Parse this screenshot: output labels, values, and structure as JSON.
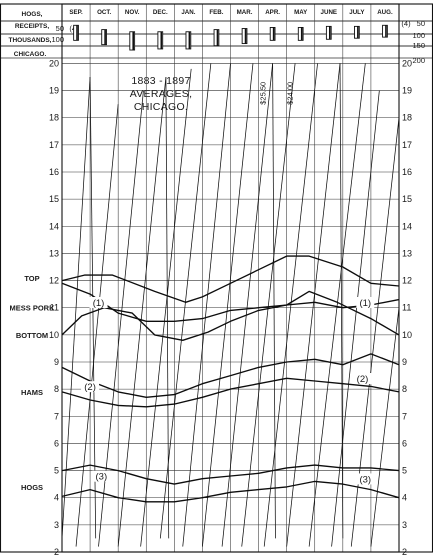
{
  "header": {
    "row_labels": [
      "HOGS,",
      "RECEIPTS,",
      "THOUSANDS,",
      "CHICAGO."
    ],
    "left_scale_top": [
      "50",
      "100"
    ],
    "right_scale_top": [
      "50",
      "100",
      "150",
      "200"
    ],
    "left_prefix": "(4)",
    "right_prefix": "(4)"
  },
  "chart_data": {
    "type": "line",
    "title": [
      "1883 - 1897",
      "AVERAGES,",
      "CHICAGO."
    ],
    "categories": [
      "SEP.",
      "OCT.",
      "NOV.",
      "DEC.",
      "JAN.",
      "FEB.",
      "MAR.",
      "APR.",
      "MAY",
      "JUNE",
      "JULY",
      "AUG."
    ],
    "y_left_ticks": [
      "2",
      "3",
      "4",
      "5",
      "6",
      "7",
      "8",
      "9",
      "10",
      "11",
      "12",
      "13",
      "14",
      "15",
      "16",
      "17",
      "18",
      "19",
      "20"
    ],
    "y_right_ticks": [
      "2",
      "3",
      "4",
      "5",
      "6",
      "7",
      "8",
      "9",
      "10",
      "11",
      "12",
      "13",
      "14",
      "15",
      "16",
      "17",
      "18",
      "19",
      "20"
    ],
    "ylim": [
      2,
      20.2
    ],
    "grid": true,
    "row_labels": [
      {
        "text": "TOP",
        "y": 12.1
      },
      {
        "text": "MESS PORK",
        "y": 11.0
      },
      {
        "text": "BOTTOM",
        "y": 10.0
      },
      {
        "text": "HAMS",
        "y": 7.9
      },
      {
        "text": "HOGS",
        "y": 4.4
      }
    ],
    "annotations": [
      {
        "text": "(1)",
        "x": 1.3,
        "y": 11.1
      },
      {
        "text": "(1)",
        "x": 10.8,
        "y": 11.1
      },
      {
        "text": "(2)",
        "x": 1.0,
        "y": 8.0
      },
      {
        "text": "(2)",
        "x": 10.7,
        "y": 8.3
      },
      {
        "text": "(3)",
        "x": 1.4,
        "y": 4.7
      },
      {
        "text": "(3)",
        "x": 10.8,
        "y": 4.6
      }
    ],
    "rotated_labels": [
      {
        "text": "$25.50",
        "x": 7.25,
        "y": 18.9
      },
      {
        "text": "$24.00",
        "x": 8.2,
        "y": 18.9
      }
    ],
    "series": [
      {
        "name": "Mess pork, top",
        "x": [
          0,
          0.8,
          1.8,
          3.3,
          4.4,
          5.0,
          6.0,
          7.0,
          8.0,
          8.8,
          10.0,
          11.0,
          12.0
        ],
        "values": [
          12.0,
          12.2,
          12.2,
          11.6,
          11.2,
          11.4,
          11.9,
          12.4,
          12.9,
          12.9,
          12.5,
          11.9,
          11.8
        ]
      },
      {
        "name": "Mess pork, bottom",
        "x": [
          0,
          0.7,
          1.5,
          2.5,
          3.3,
          4.3,
          5.2,
          6.0,
          7.0,
          8.0,
          8.8,
          9.8,
          11.0,
          12.0
        ],
        "values": [
          10.0,
          10.7,
          11.0,
          10.8,
          10.0,
          9.8,
          10.1,
          10.5,
          10.9,
          11.1,
          11.6,
          11.2,
          10.6,
          10.0
        ]
      },
      {
        "name": "Pork range, upper",
        "x": [
          0,
          1.0,
          2.0,
          3.0,
          4.0,
          5.0,
          6.0,
          7.0,
          8.0,
          9.0,
          10.0,
          11.0,
          12.0
        ],
        "values": [
          11.9,
          11.5,
          10.8,
          10.5,
          10.5,
          10.6,
          10.9,
          11.0,
          11.1,
          11.2,
          11.0,
          11.1,
          11.3
        ]
      },
      {
        "name": "Hams, top",
        "x": [
          0,
          1.0,
          2.0,
          3.0,
          4.0,
          5.0,
          6.0,
          7.0,
          8.0,
          9.0,
          10.0,
          11.0,
          12.0
        ],
        "values": [
          8.8,
          8.3,
          7.9,
          7.7,
          7.8,
          8.2,
          8.5,
          8.8,
          9.0,
          9.1,
          8.9,
          9.3,
          8.9
        ]
      },
      {
        "name": "Hams, bottom",
        "x": [
          0,
          1.0,
          2.0,
          3.0,
          4.0,
          5.0,
          6.0,
          7.0,
          8.0,
          9.0,
          10.0,
          11.0,
          12.0
        ],
        "values": [
          7.9,
          7.6,
          7.4,
          7.35,
          7.45,
          7.7,
          8.0,
          8.2,
          8.4,
          8.3,
          8.2,
          8.1,
          7.9
        ]
      },
      {
        "name": "Hogs, top",
        "x": [
          0,
          1.0,
          2.0,
          3.0,
          4.0,
          5.0,
          6.0,
          7.0,
          8.0,
          9.0,
          10.0,
          11.0,
          12.0
        ],
        "values": [
          5.0,
          5.2,
          5.0,
          4.7,
          4.5,
          4.7,
          4.8,
          4.9,
          5.1,
          5.2,
          5.1,
          5.1,
          5.0
        ]
      },
      {
        "name": "Hogs, bottom",
        "x": [
          0,
          1.0,
          2.0,
          3.0,
          4.0,
          5.0,
          6.0,
          7.0,
          8.0,
          9.0,
          10.0,
          11.0,
          12.0
        ],
        "values": [
          4.05,
          4.3,
          4.0,
          3.85,
          3.85,
          4.0,
          4.2,
          4.3,
          4.4,
          4.6,
          4.5,
          4.3,
          4.0
        ]
      }
    ],
    "receipts_bars": [
      {
        "x": 0.5,
        "top": 40,
        "bottom": 110
      },
      {
        "x": 1.5,
        "top": 60,
        "bottom": 130
      },
      {
        "x": 2.5,
        "top": 70,
        "bottom": 155
      },
      {
        "x": 3.5,
        "top": 70,
        "bottom": 150
      },
      {
        "x": 4.5,
        "top": 70,
        "bottom": 150
      },
      {
        "x": 5.5,
        "top": 60,
        "bottom": 135
      },
      {
        "x": 6.5,
        "top": 55,
        "bottom": 125
      },
      {
        "x": 7.5,
        "top": 50,
        "bottom": 110
      },
      {
        "x": 8.5,
        "top": 50,
        "bottom": 110
      },
      {
        "x": 9.5,
        "top": 45,
        "bottom": 105
      },
      {
        "x": 10.5,
        "top": 45,
        "bottom": 100
      },
      {
        "x": 11.5,
        "top": 40,
        "bottom": 95
      }
    ],
    "diagonals": [
      {
        "x1": 0.0,
        "y1": 2.5,
        "x2": 1.0,
        "y2": 19.5
      },
      {
        "x1": 0.5,
        "y1": 2.2,
        "x2": 2.0,
        "y2": 18.5
      },
      {
        "x1": 1.3,
        "y1": 2.2,
        "x2": 2.9,
        "y2": 19.0
      },
      {
        "x1": 2.0,
        "y1": 2.2,
        "x2": 3.7,
        "y2": 19.5
      },
      {
        "x1": 2.8,
        "y1": 2.2,
        "x2": 4.6,
        "y2": 19.8
      },
      {
        "x1": 3.5,
        "y1": 2.5,
        "x2": 5.3,
        "y2": 20.0
      },
      {
        "x1": 4.3,
        "y1": 2.2,
        "x2": 6.0,
        "y2": 20.0
      },
      {
        "x1": 5.0,
        "y1": 2.2,
        "x2": 6.8,
        "y2": 20.0
      },
      {
        "x1": 5.7,
        "y1": 2.2,
        "x2": 7.5,
        "y2": 20.0
      },
      {
        "x1": 6.4,
        "y1": 2.2,
        "x2": 8.3,
        "y2": 20.0
      },
      {
        "x1": 7.2,
        "y1": 2.2,
        "x2": 9.1,
        "y2": 20.0
      },
      {
        "x1": 8.0,
        "y1": 2.2,
        "x2": 9.9,
        "y2": 20.0
      },
      {
        "x1": 8.8,
        "y1": 2.2,
        "x2": 10.8,
        "y2": 20.0
      },
      {
        "x1": 9.6,
        "y1": 2.2,
        "x2": 11.3,
        "y2": 19.0
      },
      {
        "x1": 10.3,
        "y1": 2.2,
        "x2": 12.0,
        "y2": 18.0
      },
      {
        "x1": 11.0,
        "y1": 2.2,
        "x2": 12.0,
        "y2": 11.0
      },
      {
        "x1": 1.0,
        "y1": 19.5,
        "x2": 1.2,
        "y2": 2.5
      },
      {
        "x1": 3.7,
        "y1": 19.5,
        "x2": 3.8,
        "y2": 2.5
      },
      {
        "x1": 7.5,
        "y1": 20.0,
        "x2": 7.6,
        "y2": 2.5
      },
      {
        "x1": 9.9,
        "y1": 20.0,
        "x2": 10.0,
        "y2": 2.5
      }
    ]
  }
}
